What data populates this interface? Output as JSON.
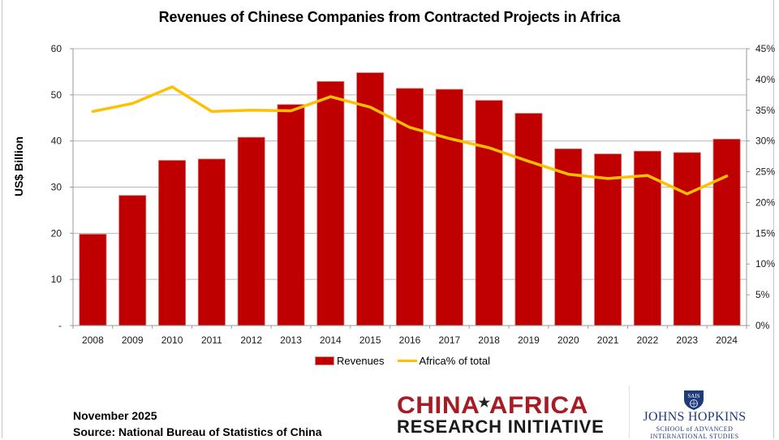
{
  "chart_data": {
    "type": "bar",
    "title": "Revenues of Chinese Companies from Contracted Projects in Africa",
    "xlabel": "",
    "ylabel": "US$ Billion",
    "y2label": "",
    "categories": [
      "2008",
      "2009",
      "2010",
      "2011",
      "2012",
      "2013",
      "2014",
      "2015",
      "2016",
      "2017",
      "2018",
      "2019",
      "2020",
      "2021",
      "2022",
      "2023",
      "2024"
    ],
    "series": [
      {
        "name": "Revenues",
        "type": "bar",
        "axis": "left",
        "color": "#c00000",
        "values": [
          19.8,
          28.2,
          35.8,
          36.1,
          40.8,
          47.9,
          52.9,
          54.8,
          51.4,
          51.2,
          48.8,
          46.0,
          38.3,
          37.2,
          37.8,
          37.5,
          40.4
        ]
      },
      {
        "name": "Africa% of total",
        "type": "line",
        "axis": "right",
        "color": "#ffc000",
        "values": [
          34.8,
          36.1,
          38.8,
          34.8,
          35.0,
          34.9,
          37.2,
          35.5,
          32.2,
          30.4,
          28.9,
          26.7,
          24.6,
          23.9,
          24.4,
          21.4,
          24.3
        ]
      }
    ],
    "ylim": [
      0,
      60
    ],
    "y2lim": [
      0,
      45
    ],
    "yticks": [
      "-",
      "10",
      "20",
      "30",
      "40",
      "50",
      "60"
    ],
    "yticks_values": [
      0,
      10,
      20,
      30,
      40,
      50,
      60
    ],
    "y2ticks": [
      "0%",
      "5%",
      "10%",
      "15%",
      "20%",
      "25%",
      "30%",
      "35%",
      "40%",
      "45%"
    ],
    "y2ticks_values": [
      0,
      5,
      10,
      15,
      20,
      25,
      30,
      35,
      40,
      45
    ],
    "grid": true,
    "legend": {
      "position": "bottom",
      "entries": [
        "Revenues",
        "Africa% of total"
      ]
    }
  },
  "footer": {
    "date": "November 2025",
    "source": "Source: National Bureau of Statistics of China"
  },
  "logos": {
    "cari_top_left": "CHINA",
    "cari_top_right": "AFRICA",
    "cari_star": "★",
    "cari_bottom": "RESEARCH INITIATIVE",
    "jhu_shield_text": "SAIS",
    "jhu_name": "JOHNS HOPKINS",
    "jhu_sub1": "SCHOOL of ADVANCED",
    "jhu_sub2": "INTERNATIONAL STUDIES"
  }
}
